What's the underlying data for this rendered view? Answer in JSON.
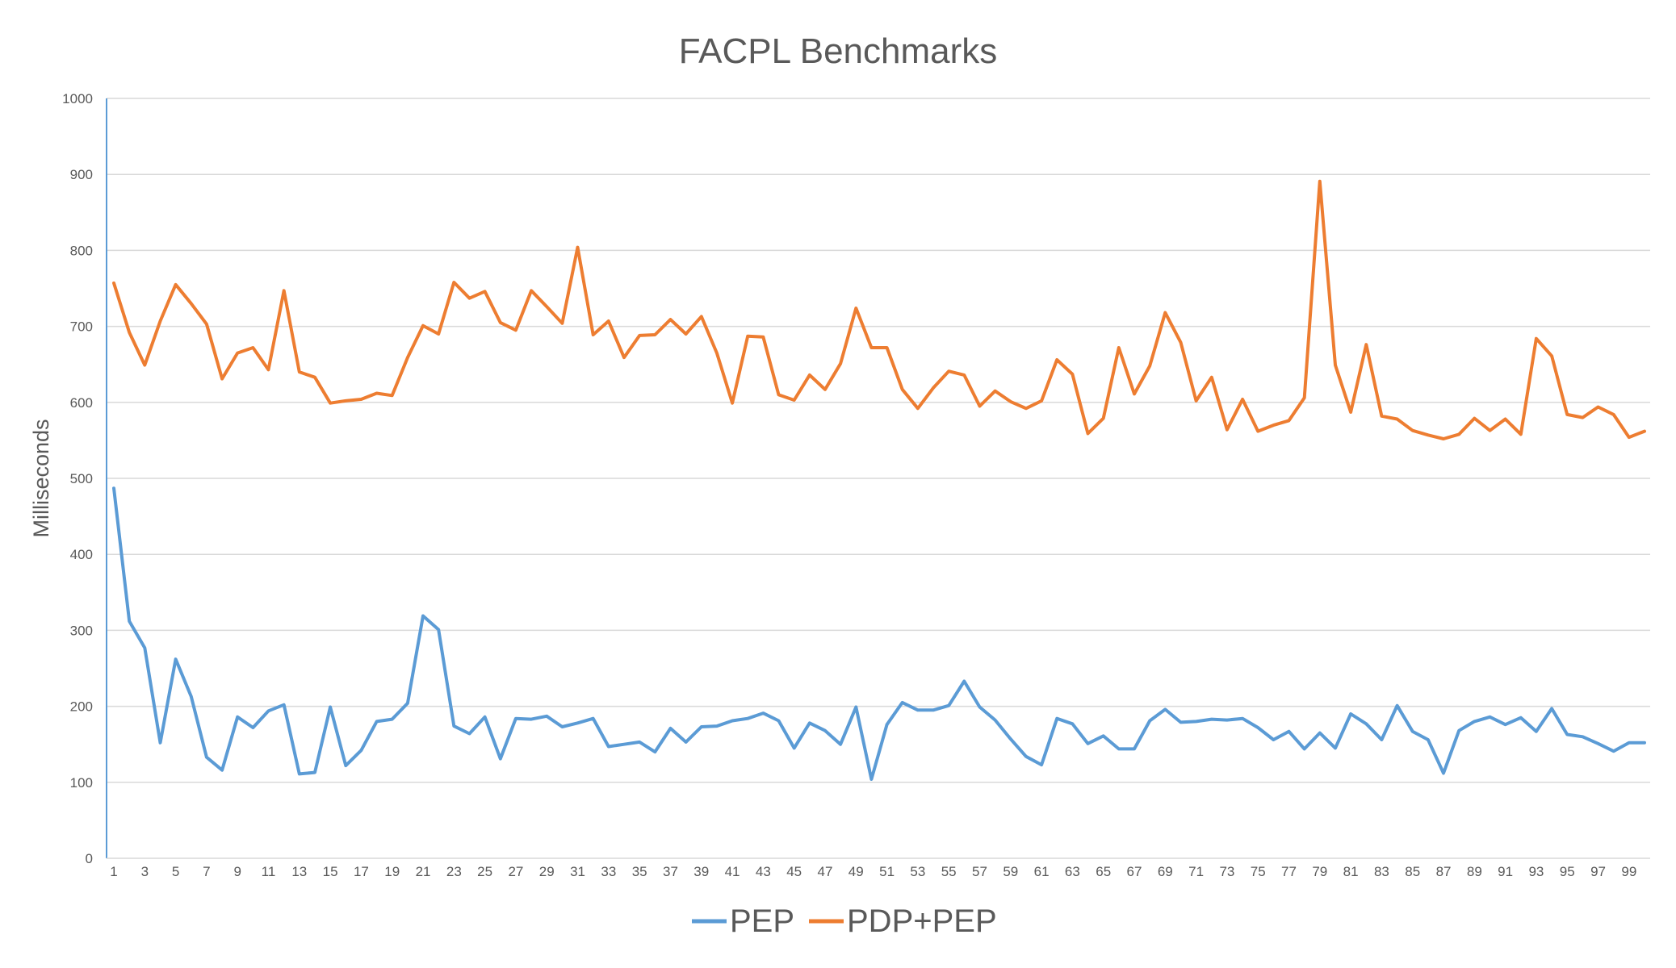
{
  "chart_data": {
    "type": "line",
    "title": "FACPL Benchmarks",
    "xlabel": "",
    "ylabel": "Milliseconds",
    "ylim": [
      0,
      1000
    ],
    "yticks": [
      0,
      100,
      200,
      300,
      400,
      500,
      600,
      700,
      800,
      900,
      1000
    ],
    "xlim": [
      1,
      100
    ],
    "xtick_labels": [
      "1",
      "3",
      "5",
      "7",
      "9",
      "11",
      "13",
      "15",
      "17",
      "19",
      "21",
      "23",
      "25",
      "27",
      "29",
      "31",
      "33",
      "35",
      "37",
      "39",
      "41",
      "43",
      "45",
      "47",
      "49",
      "51",
      "53",
      "55",
      "57",
      "59",
      "61",
      "63",
      "65",
      "67",
      "69",
      "71",
      "73",
      "75",
      "77",
      "79",
      "81",
      "83",
      "85",
      "87",
      "89",
      "91",
      "93",
      "95",
      "97",
      "99"
    ],
    "grid": true,
    "legend_position": "bottom",
    "x": [
      1,
      2,
      3,
      4,
      5,
      6,
      7,
      8,
      9,
      10,
      11,
      12,
      13,
      14,
      15,
      16,
      17,
      18,
      19,
      20,
      21,
      22,
      23,
      24,
      25,
      26,
      27,
      28,
      29,
      30,
      31,
      32,
      33,
      34,
      35,
      36,
      37,
      38,
      39,
      40,
      41,
      42,
      43,
      44,
      45,
      46,
      47,
      48,
      49,
      50,
      51,
      52,
      53,
      54,
      55,
      56,
      57,
      58,
      59,
      60,
      61,
      62,
      63,
      64,
      65,
      66,
      67,
      68,
      69,
      70,
      71,
      72,
      73,
      74,
      75,
      76,
      77,
      78,
      79,
      80,
      81,
      82,
      83,
      84,
      85,
      86,
      87,
      88,
      89,
      90,
      91,
      92,
      93,
      94,
      95,
      96,
      97,
      98,
      99,
      100
    ],
    "series": [
      {
        "name": "PEP",
        "color": "#5B9BD5",
        "values": [
          487,
          312,
          277,
          152,
          262,
          213,
          133,
          116,
          186,
          172,
          194,
          202,
          111,
          113,
          199,
          122,
          142,
          180,
          183,
          204,
          319,
          301,
          174,
          164,
          186,
          131,
          184,
          183,
          187,
          173,
          178,
          184,
          147,
          150,
          153,
          140,
          171,
          153,
          173,
          174,
          181,
          184,
          191,
          181,
          145,
          178,
          168,
          150,
          199,
          104,
          176,
          205,
          195,
          195,
          201,
          233,
          199,
          182,
          157,
          134,
          123,
          184,
          177,
          151,
          161,
          144,
          144,
          181,
          196,
          179,
          180,
          183,
          182,
          184,
          172,
          156,
          167,
          144,
          165,
          145,
          190,
          177,
          156,
          201,
          167,
          156,
          112,
          168,
          180,
          186,
          176,
          185,
          167,
          197,
          163,
          160,
          151,
          141,
          152,
          152
        ]
      },
      {
        "name": "PDP+PEP",
        "color": "#ED7D31",
        "values": [
          757,
          692,
          649,
          707,
          755,
          730,
          703,
          631,
          665,
          672,
          643,
          747,
          640,
          633,
          599,
          602,
          604,
          612,
          609,
          659,
          701,
          690,
          758,
          737,
          746,
          705,
          695,
          747,
          726,
          704,
          804,
          689,
          707,
          659,
          688,
          689,
          709,
          690,
          713,
          665,
          599,
          687,
          686,
          610,
          603,
          636,
          617,
          651,
          724,
          672,
          672,
          617,
          592,
          619,
          641,
          636,
          595,
          615,
          601,
          592,
          602,
          656,
          637,
          559,
          579,
          672,
          611,
          648,
          718,
          679,
          602,
          633,
          564,
          604,
          562,
          570,
          576,
          606,
          891,
          649,
          587,
          676,
          582,
          578,
          563,
          557,
          552,
          558,
          579,
          563,
          578,
          558,
          684,
          661,
          584,
          580,
          594,
          584,
          554,
          562
        ]
      }
    ]
  }
}
